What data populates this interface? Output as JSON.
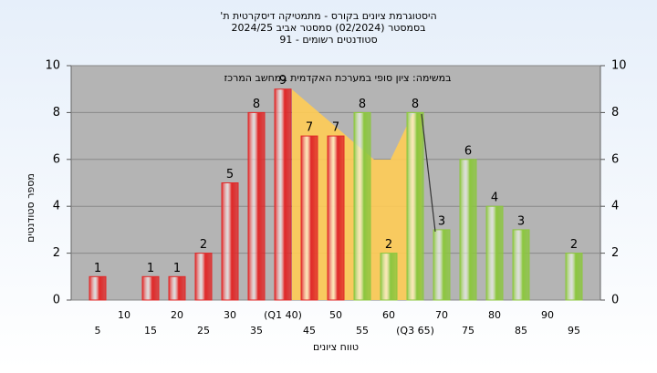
{
  "chart_data": {
    "type": "bar",
    "title": [
      "'היסטוגרמת ציונים בקורס - מתמטיקה דיסקרטית ת",
      "בסמסטר (02/2024) סמסטר אביב 2024/25",
      "סטודנטים רשומים - 91"
    ],
    "annotation": "במשימה: ציון סופי במערכת האקדמית במחשב המרכז",
    "x_label": "טווח ציונים",
    "y_label": "מספר סטודנטים",
    "categories": [
      "5",
      "10",
      "15",
      "20",
      "25",
      "30",
      "35",
      "(Q1 40)",
      "45",
      "50",
      "55",
      "60",
      "(Q3 65)",
      "70",
      "75",
      "80",
      "85",
      "90",
      "95"
    ],
    "values": [
      1,
      null,
      1,
      1,
      2,
      5,
      8,
      9,
      7,
      7,
      8,
      2,
      8,
      3,
      6,
      4,
      3,
      null,
      2
    ],
    "bar_colors": [
      "#e02828",
      null,
      "#e02828",
      "#e02828",
      "#e02828",
      "#e02828",
      "#e02828",
      "#e02828",
      "#e02828",
      "#e02828",
      "#8cc63f",
      "#8cc63f",
      "#8cc63f",
      "#8cc63f",
      "#8cc63f",
      "#8cc63f",
      "#8cc63f",
      null,
      "#8cc63f"
    ],
    "ylim": [
      0,
      10
    ],
    "yticks": [
      0,
      2,
      4,
      6,
      8,
      10
    ],
    "y2lim": [
      0,
      10
    ],
    "y2ticks": [
      0,
      2,
      4,
      6,
      8,
      10
    ],
    "grid": true
  }
}
